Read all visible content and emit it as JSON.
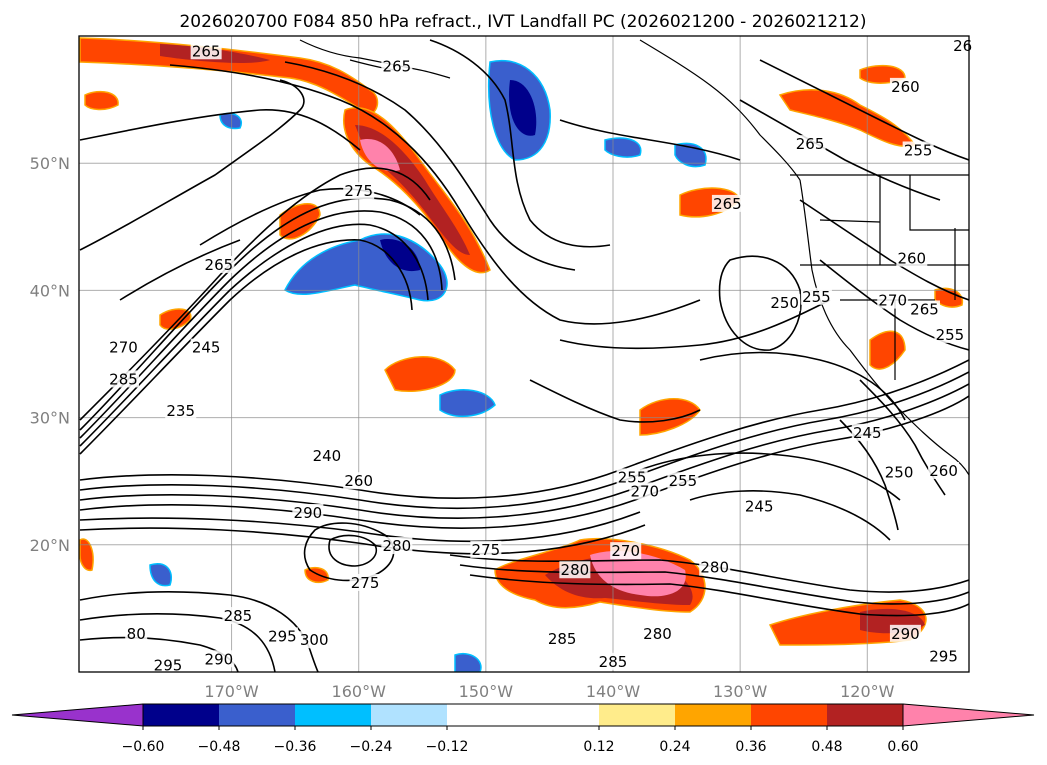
{
  "title": "2026020700 F084 850 hPa refract., IVT Landfall PC (2026021200 - 2026021212)",
  "map": {
    "lon_range": [
      -182,
      -112
    ],
    "lat_range": [
      10,
      60
    ],
    "gridlines": true,
    "lon_ticks": [
      {
        "value": -170,
        "label": "170°W"
      },
      {
        "value": -160,
        "label": "160°W"
      },
      {
        "value": -150,
        "label": "150°W"
      },
      {
        "value": -140,
        "label": "140°W"
      },
      {
        "value": -130,
        "label": "130°W"
      },
      {
        "value": -120,
        "label": "120°W"
      }
    ],
    "lat_ticks": [
      {
        "value": 20,
        "label": "20°N"
      },
      {
        "value": 30,
        "label": "30°N"
      },
      {
        "value": 40,
        "label": "40°N"
      },
      {
        "value": 50,
        "label": "50°N"
      }
    ],
    "contour_labels": [
      {
        "text": "265",
        "lon": -172.0,
        "lat": 58.8
      },
      {
        "text": "275",
        "lon": -160.0,
        "lat": 47.8
      },
      {
        "text": "265",
        "lon": -171.0,
        "lat": 42.0
      },
      {
        "text": "270",
        "lon": -178.5,
        "lat": 35.5
      },
      {
        "text": "285",
        "lon": -178.5,
        "lat": 33.0
      },
      {
        "text": "245",
        "lon": -172.0,
        "lat": 35.5
      },
      {
        "text": "235",
        "lon": -174.0,
        "lat": 30.5
      },
      {
        "text": "240",
        "lon": -162.5,
        "lat": 27.0
      },
      {
        "text": "260",
        "lon": -160.0,
        "lat": 25.0
      },
      {
        "text": "290",
        "lon": -164.0,
        "lat": 22.5
      },
      {
        "text": "280",
        "lon": -157.0,
        "lat": 19.9
      },
      {
        "text": "275",
        "lon": -159.5,
        "lat": 17.0
      },
      {
        "text": "275",
        "lon": -150.0,
        "lat": 19.6
      },
      {
        "text": "280",
        "lon": -143.0,
        "lat": 18.0
      },
      {
        "text": "270",
        "lon": -139.0,
        "lat": 19.5
      },
      {
        "text": "280",
        "lon": -132.0,
        "lat": 18.2
      },
      {
        "text": "285",
        "lon": -144.0,
        "lat": 12.6
      },
      {
        "text": "280",
        "lon": -136.5,
        "lat": 13.0
      },
      {
        "text": "285",
        "lon": -140.0,
        "lat": 10.8
      },
      {
        "text": "285",
        "lon": -169.5,
        "lat": 14.4
      },
      {
        "text": "295",
        "lon": -166.0,
        "lat": 12.8
      },
      {
        "text": "300",
        "lon": -163.5,
        "lat": 12.5
      },
      {
        "text": "290",
        "lon": -171.0,
        "lat": 11.0
      },
      {
        "text": "295",
        "lon": -175.0,
        "lat": 10.5
      },
      {
        "text": "80",
        "lon": -177.5,
        "lat": 13.0
      },
      {
        "text": "255",
        "lon": -138.5,
        "lat": 25.3
      },
      {
        "text": "270",
        "lon": -137.5,
        "lat": 24.2
      },
      {
        "text": "255",
        "lon": -134.5,
        "lat": 25.0
      },
      {
        "text": "245",
        "lon": -128.5,
        "lat": 23.0
      },
      {
        "text": "245",
        "lon": -120.0,
        "lat": 28.8
      },
      {
        "text": "250",
        "lon": -117.5,
        "lat": 25.7
      },
      {
        "text": "260",
        "lon": -114.0,
        "lat": 25.8
      },
      {
        "text": "250",
        "lon": -126.5,
        "lat": 39.0
      },
      {
        "text": "255",
        "lon": -124.0,
        "lat": 39.5
      },
      {
        "text": "270",
        "lon": -118.0,
        "lat": 39.2
      },
      {
        "text": "265",
        "lon": -115.5,
        "lat": 38.5
      },
      {
        "text": "255",
        "lon": -113.5,
        "lat": 36.5
      },
      {
        "text": "260",
        "lon": -116.5,
        "lat": 42.5
      },
      {
        "text": "265",
        "lon": -131.0,
        "lat": 46.8
      },
      {
        "text": "265",
        "lon": -124.5,
        "lat": 51.5
      },
      {
        "text": "255",
        "lon": -116.0,
        "lat": 51.0
      },
      {
        "text": "260",
        "lon": -117.0,
        "lat": 56.0
      },
      {
        "text": "26",
        "lon": -112.5,
        "lat": 59.2
      },
      {
        "text": "265",
        "lon": -157.0,
        "lat": 57.6
      },
      {
        "text": "290",
        "lon": -117.0,
        "lat": 13.0
      },
      {
        "text": "295",
        "lon": -114.0,
        "lat": 11.2
      }
    ]
  },
  "colorbar": {
    "boundaries": [
      -0.72,
      -0.6,
      -0.48,
      -0.36,
      -0.24,
      -0.12,
      0.12,
      0.24,
      0.36,
      0.48,
      0.6,
      0.72
    ],
    "colors": [
      "#9932cc",
      "#00008b",
      "#3a5fcd",
      "#00bfff",
      "#b0e2ff",
      "#ffffff",
      "#ffec8b",
      "#ffa500",
      "#ff4500",
      "#b22222",
      "#ff82ab",
      "#ff82ab"
    ],
    "extend_min_color": "#9932cc",
    "extend_max_color": "#ff82ab",
    "tick_labels": [
      "−0.60",
      "−0.48",
      "−0.36",
      "−0.24",
      "−0.12",
      "0.12",
      "0.24",
      "0.36",
      "0.48",
      "0.60"
    ]
  }
}
